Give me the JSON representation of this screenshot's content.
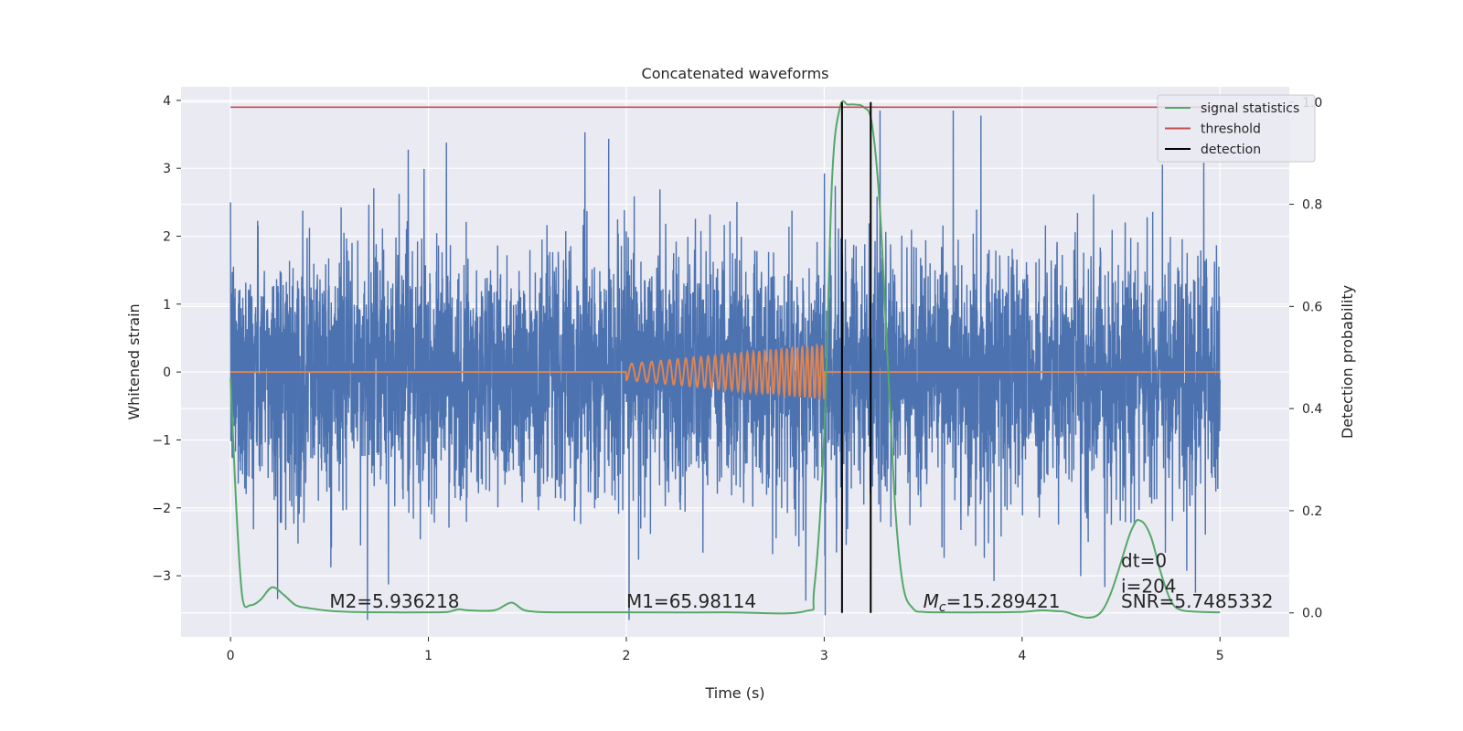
{
  "chart_data": {
    "type": "line",
    "title": "Concatenated waveforms",
    "xlabel": "Time (s)",
    "ylabel_left": "Whitened strain",
    "ylabel_right": "Detection probability",
    "xlim": [
      -0.25,
      5.35
    ],
    "ylim_left": [
      -3.9,
      4.2
    ],
    "ylim_right": [
      -0.047,
      1.03
    ],
    "x_ticks": [
      0,
      1,
      2,
      3,
      4,
      5
    ],
    "y_ticks_left": [
      -3,
      -2,
      -1,
      0,
      1,
      2,
      3,
      4
    ],
    "y_ticks_right": [
      0.0,
      0.2,
      0.4,
      0.6,
      0.8,
      1.0
    ],
    "grid": true,
    "legend_position": "top-right",
    "colors": {
      "background": "#eaeaf2",
      "grid": "#ffffff",
      "strain": "#4c72b0",
      "template": "#dd8452",
      "signal_statistics": "#55a868",
      "threshold": "#c44e52",
      "detection": "#000000"
    },
    "series": [
      {
        "name": "",
        "axis": "left",
        "description_kind": "whitened strain noise",
        "x_range": [
          0,
          5
        ],
        "typical_range": [
          -2.2,
          2.2
        ],
        "extremes": [
          -3.65,
          3.85
        ]
      },
      {
        "name": "",
        "axis": "left",
        "description_kind": "chirp template",
        "x_range": [
          0,
          5
        ],
        "chirp_x_range": [
          2.0,
          3.0
        ],
        "chirp_amplitude_start": 0.12,
        "chirp_amplitude_end": 0.4
      },
      {
        "name": "signal statistics",
        "axis": "right",
        "x": [
          0.0,
          0.03,
          0.06,
          0.1,
          0.15,
          0.21,
          0.27,
          0.33,
          0.4,
          0.5,
          0.6,
          0.8,
          1.0,
          1.1,
          1.15,
          1.2,
          1.3,
          1.35,
          1.42,
          1.48,
          1.55,
          1.7,
          2.0,
          2.5,
          2.9,
          2.95,
          3.0,
          3.04,
          3.08,
          3.12,
          3.16,
          3.2,
          3.24,
          3.28,
          3.32,
          3.36,
          3.4,
          3.45,
          3.5,
          3.6,
          3.8,
          4.0,
          4.1,
          4.2,
          4.4,
          4.55,
          4.6,
          4.65,
          4.7,
          4.75,
          4.8,
          4.9,
          5.0
        ],
        "y": [
          0.46,
          0.2,
          0.03,
          0.015,
          0.025,
          0.05,
          0.035,
          0.015,
          0.009,
          0.004,
          0.002,
          0.001,
          0.001,
          0.002,
          0.007,
          0.005,
          0.004,
          0.007,
          0.02,
          0.006,
          0.002,
          0.001,
          0.001,
          0.001,
          0.003,
          0.05,
          0.35,
          0.85,
          0.99,
          0.995,
          0.995,
          0.99,
          0.96,
          0.8,
          0.5,
          0.2,
          0.05,
          0.008,
          0.002,
          0.001,
          0.001,
          0.002,
          0.005,
          0.003,
          0.002,
          0.16,
          0.18,
          0.15,
          0.08,
          0.025,
          0.006,
          0.002,
          0.001
        ]
      },
      {
        "name": "threshold",
        "axis": "right",
        "x": [
          0,
          5
        ],
        "y": [
          0.99,
          0.99
        ]
      }
    ],
    "detections": {
      "name": "detection",
      "x": [
        3.09,
        3.235
      ],
      "y_range_right": [
        0.0,
        1.0
      ]
    },
    "annotations": [
      {
        "text": "M2=5.936218",
        "x": 0.5,
        "y_right": 0.01
      },
      {
        "text": "M1=65.98114",
        "x": 2.0,
        "y_right": 0.01
      },
      {
        "text_prefix": "M",
        "text_sub": "c",
        "text_suffix": "=15.289421",
        "x": 3.5,
        "y_right": 0.01
      },
      {
        "text": "dt=0",
        "x": 4.5,
        "y_right": 0.09
      },
      {
        "text": "i=204",
        "x": 4.5,
        "y_right": 0.04
      },
      {
        "text": "SNR=5.7485332",
        "x": 4.5,
        "y_right": 0.01
      }
    ],
    "legend": [
      "signal statistics",
      "threshold",
      "detection"
    ]
  }
}
